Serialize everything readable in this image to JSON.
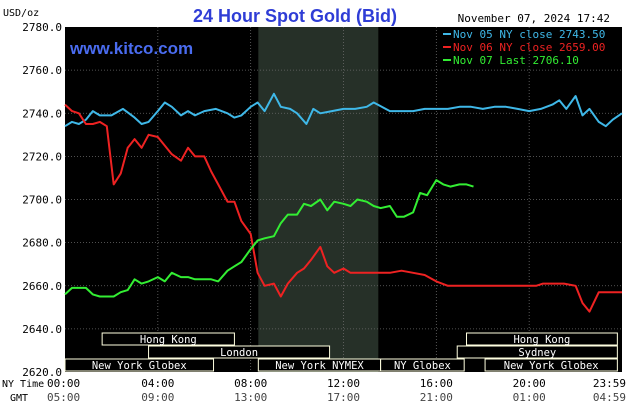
{
  "chart_data": {
    "type": "line",
    "title": "24 Hour Spot Gold (Bid)",
    "watermark": "www.kitco.com",
    "timestamp": "November 07, 2024 17:42",
    "y_unit": "USD/oz",
    "ylim": [
      2620,
      2780
    ],
    "y_ticks": [
      "2780.0",
      "2760.0",
      "2740.0",
      "2720.0",
      "2700.0",
      "2680.0",
      "2660.0",
      "2640.0",
      "2620.0"
    ],
    "x_row_labels": {
      "ny": "NY Time",
      "gmt": "GMT"
    },
    "x_ticks_ny": [
      "00:00",
      "04:00",
      "08:00",
      "12:00",
      "16:00",
      "20:00",
      "23:59"
    ],
    "x_ticks_gmt": [
      "05:00",
      "09:00",
      "13:00",
      "17:00",
      "21:00",
      "01:00",
      "04:59"
    ],
    "xlim_hours": [
      0,
      24
    ],
    "nymex_shade_hours": [
      8.33,
      13.5
    ],
    "grid": true,
    "legend_position": "top-right",
    "series": [
      {
        "name": "Nov 05 NY close 2743.50",
        "color": "#3fb8e8",
        "x": [
          0,
          0.3,
          0.6,
          0.9,
          1.2,
          1.5,
          2,
          2.5,
          3,
          3.3,
          3.6,
          4,
          4.3,
          4.6,
          5,
          5.3,
          5.6,
          6,
          6.5,
          7,
          7.3,
          7.6,
          8,
          8.3,
          8.6,
          9,
          9.3,
          9.7,
          10,
          10.4,
          10.7,
          11,
          11.5,
          12,
          12.5,
          13,
          13.3,
          14,
          14.5,
          15,
          15.5,
          16,
          16.5,
          17,
          17.5,
          18,
          18.5,
          19,
          19.5,
          20,
          20.5,
          21,
          21.3,
          21.6,
          22,
          22.3,
          22.6,
          23,
          23.3,
          23.6,
          24
        ],
        "values": [
          2734,
          2736,
          2735,
          2737,
          2741,
          2739,
          2739,
          2742,
          2738,
          2735,
          2736,
          2741,
          2745,
          2743,
          2739,
          2741,
          2739,
          2741,
          2742,
          2740,
          2738,
          2739,
          2743,
          2745,
          2741,
          2749,
          2743,
          2742,
          2740,
          2735,
          2742,
          2740,
          2741,
          2742,
          2742,
          2743,
          2745,
          2741,
          2741,
          2741,
          2742,
          2742,
          2742,
          2743,
          2743,
          2742,
          2743,
          2743,
          2742,
          2741,
          2742,
          2744,
          2746,
          2742,
          2748,
          2739,
          2742,
          2736,
          2734,
          2737,
          2740
        ]
      },
      {
        "name": "Nov 06 NY close 2659.00",
        "color": "#ee2222",
        "x": [
          0,
          0.3,
          0.6,
          0.9,
          1.2,
          1.5,
          1.8,
          2.1,
          2.4,
          2.7,
          3,
          3.3,
          3.6,
          4,
          4.3,
          4.6,
          5,
          5.3,
          5.6,
          6,
          6.3,
          6.6,
          7,
          7.3,
          7.6,
          8,
          8.3,
          8.6,
          9,
          9.3,
          9.6,
          10,
          10.3,
          10.6,
          11,
          11.3,
          11.6,
          12,
          12.3,
          12.6,
          13,
          13.5,
          14,
          14.5,
          15,
          15.5,
          16,
          16.5,
          17,
          17.5,
          18,
          18.5,
          19,
          19.5,
          20,
          20.3,
          20.6,
          21,
          21.5,
          22,
          22.3,
          22.6,
          23,
          23.3,
          23.6,
          24
        ],
        "values": [
          2744,
          2741,
          2740,
          2735,
          2735,
          2736,
          2734,
          2707,
          2712,
          2724,
          2728,
          2724,
          2730,
          2729,
          2725,
          2721,
          2718,
          2724,
          2720,
          2720,
          2713,
          2707,
          2699,
          2699,
          2690,
          2684,
          2666,
          2660,
          2661,
          2655,
          2661,
          2666,
          2668,
          2672,
          2678,
          2669,
          2666,
          2668,
          2666,
          2666,
          2666,
          2666,
          2666,
          2667,
          2666,
          2665,
          2662,
          2660,
          2660,
          2660,
          2660,
          2660,
          2660,
          2660,
          2660,
          2660,
          2661,
          2661,
          2661,
          2660,
          2652,
          2648,
          2657,
          2657,
          2657,
          2657
        ]
      },
      {
        "name": "Nov 07 Last 2706.10",
        "color": "#33ee33",
        "x": [
          0,
          0.3,
          0.6,
          0.9,
          1.2,
          1.5,
          1.8,
          2.1,
          2.4,
          2.7,
          3,
          3.3,
          3.6,
          4,
          4.3,
          4.6,
          5,
          5.3,
          5.6,
          6,
          6.3,
          6.6,
          7,
          7.3,
          7.6,
          8,
          8.3,
          8.6,
          9,
          9.3,
          9.6,
          10,
          10.3,
          10.6,
          11,
          11.3,
          11.6,
          12,
          12.3,
          12.6,
          13,
          13.3,
          13.6,
          14,
          14.3,
          14.6,
          15,
          15.3,
          15.6,
          16,
          16.3,
          16.6,
          17,
          17.3,
          17.6
        ],
        "values": [
          2656,
          2659,
          2659,
          2659,
          2656,
          2655,
          2655,
          2655,
          2657,
          2658,
          2663,
          2661,
          2662,
          2664,
          2662,
          2666,
          2664,
          2664,
          2663,
          2663,
          2663,
          2662,
          2667,
          2669,
          2671,
          2677,
          2681,
          2682,
          2683,
          2689,
          2693,
          2693,
          2698,
          2697,
          2700,
          2695,
          2699,
          2698,
          2697,
          2700,
          2699,
          2697,
          2696,
          2697,
          2692,
          2692,
          2694,
          2703,
          2702,
          2709,
          2707,
          2706,
          2707,
          2707,
          2706
        ]
      }
    ],
    "sessions": [
      {
        "label": "Hong Kong",
        "start": 1.6,
        "end": 7.3,
        "row": 0
      },
      {
        "label": "Hong Kong",
        "start": 17.3,
        "end": 23.8,
        "row": 0
      },
      {
        "label": "London",
        "start": 3.6,
        "end": 11.4,
        "row": 1
      },
      {
        "label": "Sydney",
        "start": 16.9,
        "end": 23.8,
        "row": 1
      },
      {
        "label": "New York Globex",
        "start": 0.0,
        "end": 6.4,
        "row": 2
      },
      {
        "label": "New York NYMEX",
        "start": 8.33,
        "end": 13.6,
        "row": 2
      },
      {
        "label": "NY Globex",
        "start": 13.6,
        "end": 17.2,
        "row": 2
      },
      {
        "label": "New York Globex",
        "start": 18.1,
        "end": 23.8,
        "row": 2
      }
    ]
  }
}
